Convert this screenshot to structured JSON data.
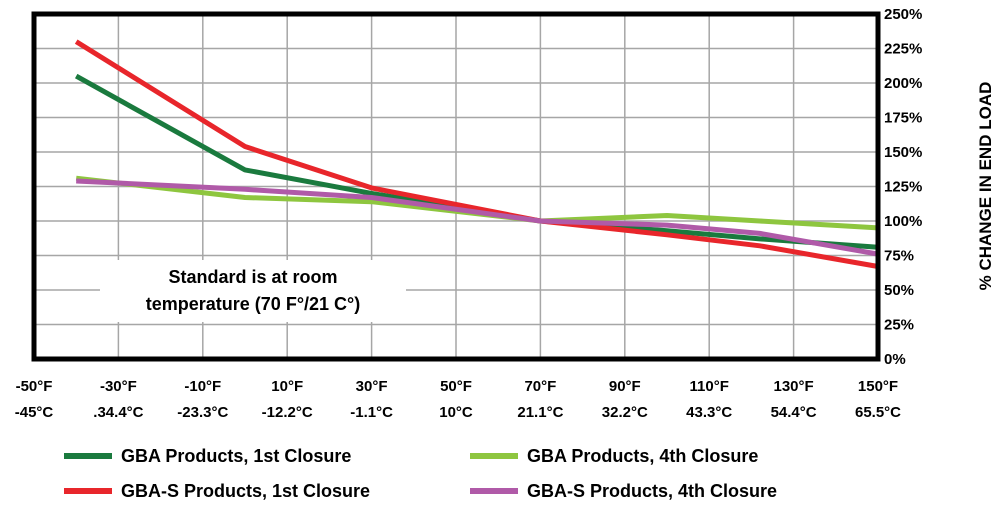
{
  "chart_data": {
    "type": "line",
    "ylabel": "% CHANGE IN END LOAD",
    "ylim": [
      0,
      250
    ],
    "y_ticks": [
      "250%",
      "225%",
      "200%",
      "175%",
      "150%",
      "125%",
      "100%",
      "75%",
      "50%",
      "25%",
      "0%"
    ],
    "y_tick_values": [
      250,
      225,
      200,
      175,
      150,
      125,
      100,
      75,
      50,
      25,
      0
    ],
    "xlim": [
      -50,
      150
    ],
    "x_ticks_f": [
      "-50°F",
      "-30°F",
      "-10°F",
      "10°F",
      "30°F",
      "50°F",
      "70°F",
      "90°F",
      "110°F",
      "130°F",
      "150°F"
    ],
    "x_ticks_c": [
      "-45°C",
      ".34.4°C",
      "-23.3°C",
      "-12.2°C",
      "-1.1°C",
      "10°C",
      "21.1°C",
      "32.2°C",
      "43.3°C",
      "54.4°C",
      "65.5°C"
    ],
    "x_tick_values": [
      -50,
      -30,
      -10,
      10,
      30,
      50,
      70,
      90,
      110,
      130,
      150
    ],
    "grid": true,
    "legend_position": "bottom",
    "annotation": [
      "Standard is at room",
      "temperature (70 F°/21 C°)"
    ],
    "series": [
      {
        "name": "GBA Products, 1st Closure",
        "color": "#1a7a3e",
        "x": [
          -40,
          0,
          30,
          70,
          100,
          122,
          150
        ],
        "y": [
          205,
          137,
          120,
          100,
          93,
          87,
          81
        ]
      },
      {
        "name": "GBA Products, 4th Closure",
        "color": "#8ec63f",
        "x": [
          -40,
          0,
          30,
          70,
          100,
          122,
          150
        ],
        "y": [
          131,
          117,
          114,
          100,
          104,
          100,
          95
        ]
      },
      {
        "name": "GBA-S Products, 1st Closure",
        "color": "#e8262b",
        "x": [
          -40,
          0,
          30,
          70,
          100,
          122,
          150
        ],
        "y": [
          230,
          154,
          124,
          100,
          90,
          82,
          67
        ]
      },
      {
        "name": "GBA-S Products, 4th Closure",
        "color": "#b05aa8",
        "x": [
          -40,
          0,
          30,
          70,
          100,
          122,
          150
        ],
        "y": [
          129,
          123,
          117,
          100,
          97,
          91,
          76
        ]
      }
    ]
  }
}
